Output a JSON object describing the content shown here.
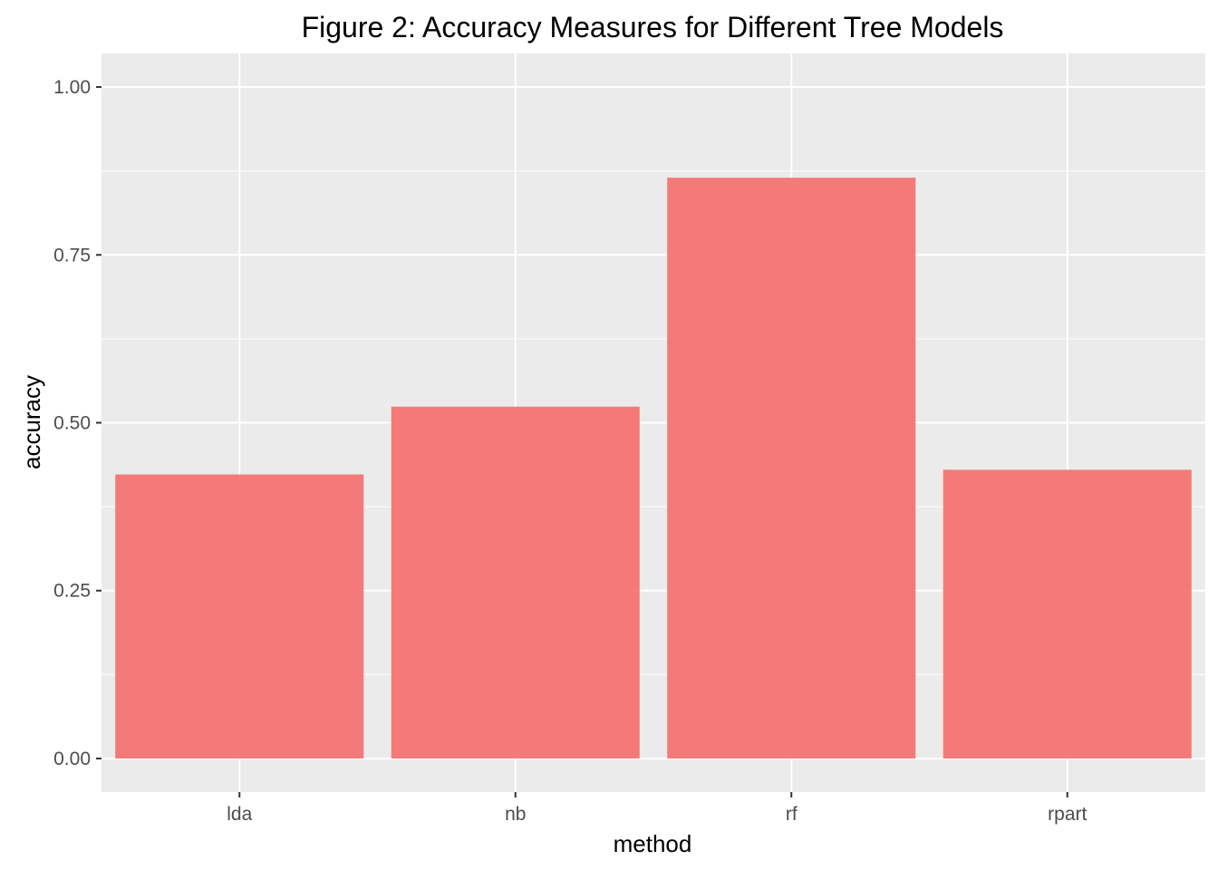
{
  "chart_data": {
    "type": "bar",
    "title": "Figure 2: Accuracy Measures for Different Tree Models",
    "xlabel": "method",
    "ylabel": "accuracy",
    "categories": [
      "lda",
      "nb",
      "rf",
      "rpart"
    ],
    "values": [
      0.423,
      0.524,
      0.865,
      0.43
    ],
    "ylim": [
      -0.05,
      1.05
    ],
    "yticks": [
      0,
      0.25,
      0.5,
      0.75,
      1
    ],
    "ytick_labels": [
      "0.00",
      "0.25",
      "0.50",
      "0.75",
      "1.00"
    ],
    "grid": true,
    "legend": "none",
    "colors": {
      "bar": "#f47474",
      "panel": "#ebebeb",
      "grid": "#ffffff",
      "tick": "#333333"
    }
  }
}
